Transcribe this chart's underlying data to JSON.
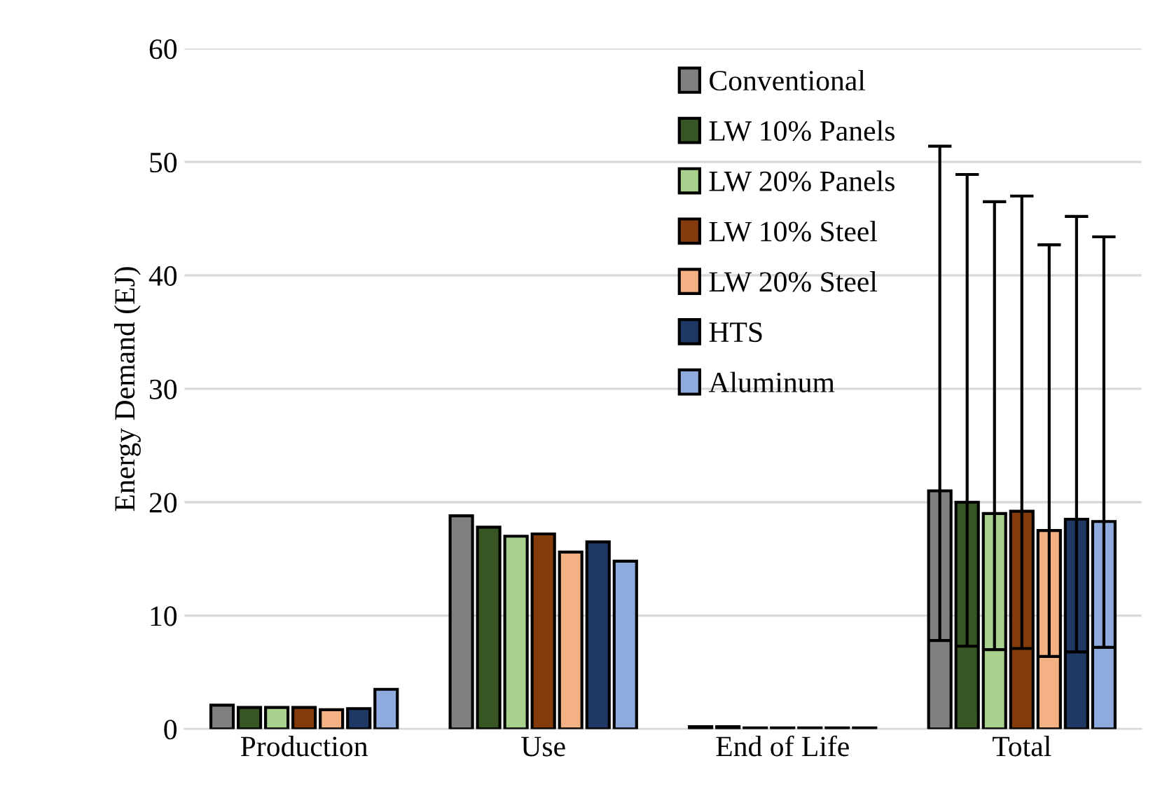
{
  "chart_data": {
    "type": "bar",
    "ylabel": "Energy Demand (EJ)",
    "categories": [
      "Production",
      "Use",
      "End of Life",
      "Total"
    ],
    "ylim": [
      0,
      60
    ],
    "yticks": [
      0,
      10,
      20,
      30,
      40,
      50,
      60
    ],
    "grid": "y",
    "legend": "top",
    "series": [
      {
        "name": "Conventional",
        "color": "#808080",
        "values": [
          2.1,
          18.8,
          0.2,
          21.0
        ],
        "errors": [
          null,
          null,
          null,
          [
            7.8,
            51.4
          ]
        ]
      },
      {
        "name": "LW 10% Panels",
        "color": "#375623",
        "values": [
          1.9,
          17.8,
          0.2,
          20.0
        ],
        "errors": [
          null,
          null,
          null,
          [
            7.3,
            48.9
          ]
        ]
      },
      {
        "name": "LW 20% Panels",
        "color": "#a9d18e",
        "values": [
          1.9,
          17.0,
          0.1,
          19.0
        ],
        "errors": [
          null,
          null,
          null,
          [
            7.0,
            46.5
          ]
        ]
      },
      {
        "name": "LW 10% Steel",
        "color": "#843c0c",
        "values": [
          1.9,
          17.2,
          0.1,
          19.2
        ],
        "errors": [
          null,
          null,
          null,
          [
            7.1,
            47.0
          ]
        ]
      },
      {
        "name": "LW 20% Steel",
        "color": "#f4b183",
        "values": [
          1.7,
          15.6,
          0.1,
          17.5
        ],
        "errors": [
          null,
          null,
          null,
          [
            6.4,
            42.7
          ]
        ]
      },
      {
        "name": "HTS",
        "color": "#203864",
        "values": [
          1.8,
          16.5,
          0.1,
          18.5
        ],
        "errors": [
          null,
          null,
          null,
          [
            6.8,
            45.2
          ]
        ]
      },
      {
        "name": "Aluminum",
        "color": "#8faadc",
        "values": [
          3.5,
          14.8,
          0.1,
          18.3
        ],
        "errors": [
          null,
          null,
          null,
          [
            7.2,
            43.4
          ]
        ]
      }
    ]
  }
}
